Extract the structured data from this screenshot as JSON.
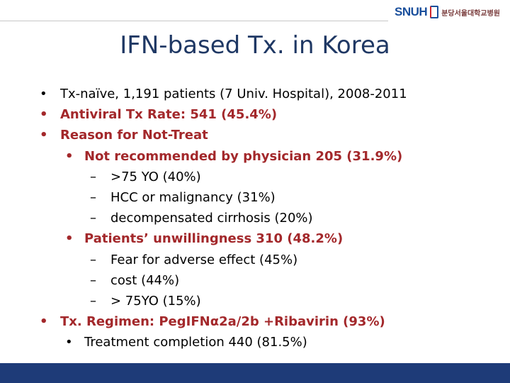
{
  "header": {
    "logo": "SNUH",
    "hospital": "분당서울대학교병원"
  },
  "title": "IFN-based Tx. in Korea",
  "items": [
    {
      "marker": "•",
      "text": "Tx-naïve, 1,191 patients (7 Univ. Hospital), 2008-2011",
      "level": 0,
      "emphasis": false
    },
    {
      "marker": "•",
      "text": "Antiviral Tx Rate: 541 (45.4%)",
      "level": 0,
      "emphasis": true
    },
    {
      "marker": "•",
      "text": "Reason for Not-Treat",
      "level": 0,
      "emphasis": true
    },
    {
      "marker": "•",
      "text": "Not recommended by physician 205 (31.9%)",
      "level": 1,
      "emphasis": true
    },
    {
      "marker": "–",
      "text": ">75 YO (40%)",
      "level": 2,
      "emphasis": false
    },
    {
      "marker": "–",
      "text": "HCC or malignancy (31%)",
      "level": 2,
      "emphasis": false
    },
    {
      "marker": "–",
      "text": "decompensated cirrhosis (20%)",
      "level": 2,
      "emphasis": false
    },
    {
      "marker": "•",
      "text": "Patients’ unwillingness 310 (48.2%)",
      "level": 1,
      "emphasis": true
    },
    {
      "marker": "–",
      "text": "Fear for adverse effect (45%)",
      "level": 2,
      "emphasis": false
    },
    {
      "marker": "–",
      "text": "cost (44%)",
      "level": 2,
      "emphasis": false
    },
    {
      "marker": "–",
      "text": "> 75YO (15%)",
      "level": 2,
      "emphasis": false
    },
    {
      "marker": "•",
      "text": "Tx. Regimen: PegIFNα2a/2b +Ribavirin (93%)",
      "level": 0,
      "emphasis": true
    },
    {
      "marker": "•",
      "text": "Treatment completion 440 (81.5%)",
      "level": 1,
      "emphasis": false
    }
  ]
}
